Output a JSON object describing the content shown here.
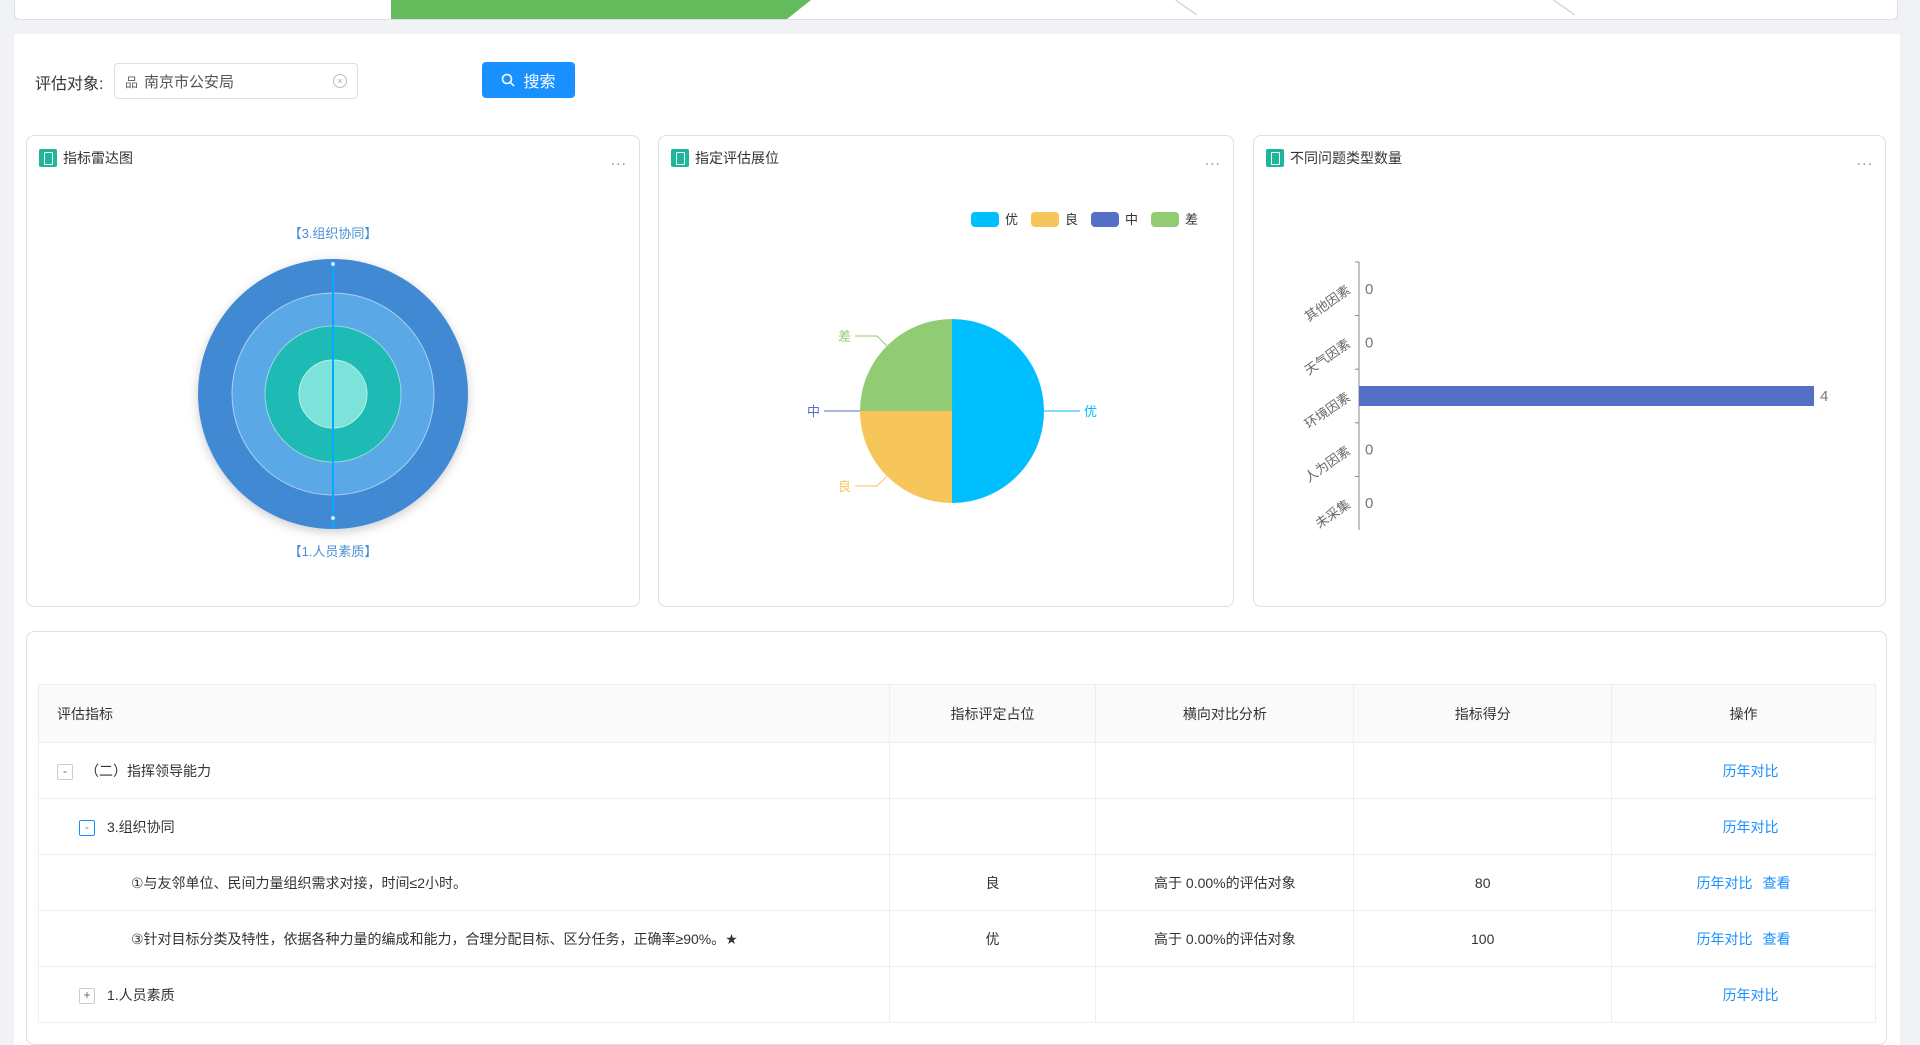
{
  "search": {
    "label": "评估对象:",
    "value": "南京市公安局",
    "button": "搜索"
  },
  "panels": [
    {
      "title": "指标雷达图",
      "more": "..."
    },
    {
      "title": "指定评估展位",
      "more": "..."
    },
    {
      "title": "不同问题类型数量",
      "more": "..."
    }
  ],
  "radar": {
    "labels": [
      "【3.组织协同】",
      "【1.人员素质】"
    ]
  },
  "colors": {
    "primary": "#1890ff",
    "step_active": "#64bb5c",
    "icon": "#1fb59a"
  },
  "chart_data": [
    {
      "type": "pie",
      "legend": [
        {
          "name": "优",
          "color": "#00bfff"
        },
        {
          "name": "良",
          "color": "#f7c65a"
        },
        {
          "name": "中",
          "color": "#5470c6"
        },
        {
          "name": "差",
          "color": "#91cc75"
        }
      ],
      "slices": [
        {
          "name": "优",
          "value": 2,
          "color": "#00bfff"
        },
        {
          "name": "良",
          "value": 1,
          "color": "#f7c65a"
        },
        {
          "name": "中",
          "value": 0,
          "color": "#5470c6"
        },
        {
          "name": "差",
          "value": 1,
          "color": "#91cc75"
        }
      ]
    },
    {
      "type": "bar",
      "orientation": "horizontal",
      "categories": [
        "其他因素",
        "天气因素",
        "环境因素",
        "人为因素",
        "未采集"
      ],
      "values": [
        0,
        0,
        4,
        0,
        0
      ],
      "color": "#5470c6",
      "xlim": [
        0,
        4
      ]
    }
  ],
  "table": {
    "headers": [
      "评估指标",
      "指标评定占位",
      "横向对比分析",
      "指标得分",
      "操作"
    ],
    "rows": [
      {
        "toggle": "-",
        "indent": 1,
        "name": "（二）指挥领导能力",
        "level": "",
        "compare": "",
        "score": "",
        "ops": [
          "历年对比"
        ]
      },
      {
        "toggle": "-",
        "indent": 2,
        "name": "3.组织协同",
        "level": "",
        "compare": "",
        "score": "",
        "ops": [
          "历年对比"
        ]
      },
      {
        "toggle": "",
        "indent": 3,
        "name": "①与友邻单位、民间力量组织需求对接，时间≤2小时。",
        "level": "良",
        "compare": "高于 0.00%的评估对象",
        "score": "80",
        "ops": [
          "历年对比",
          "查看"
        ]
      },
      {
        "toggle": "",
        "indent": 3,
        "name": "③针对目标分类及特性，依据各种力量的编成和能力，合理分配目标、区分任务，正确率≥90%。★",
        "level": "优",
        "compare": "高于 0.00%的评估对象",
        "score": "100",
        "ops": [
          "历年对比",
          "查看"
        ]
      },
      {
        "toggle": "+",
        "indent": 2,
        "name": "1.人员素质",
        "level": "",
        "compare": "",
        "score": "",
        "ops": [
          "历年对比"
        ]
      }
    ]
  }
}
